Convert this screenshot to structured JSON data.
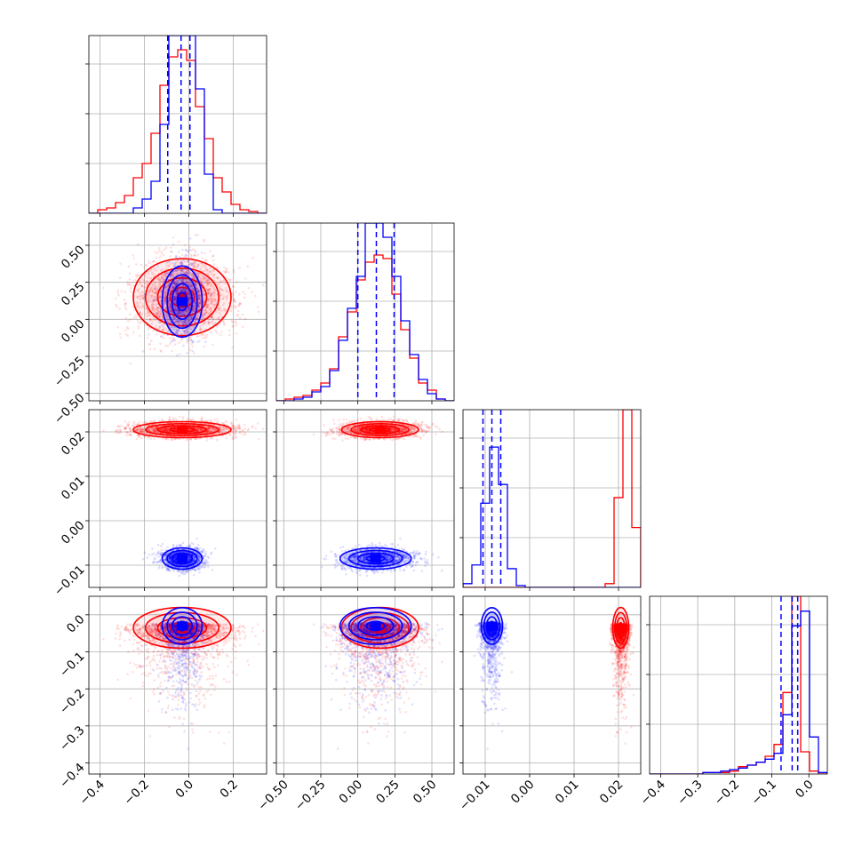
{
  "chart_data": {
    "type": "scatter",
    "grid": true,
    "colors": {
      "series_a": "#0000ff",
      "series_b": "#ff0000"
    },
    "parameters": [
      {
        "range": [
          -0.45,
          0.35
        ],
        "ticks": [
          -0.4,
          -0.2,
          0.0,
          0.2
        ],
        "tick_labels": [
          "−0.4",
          "−0.2",
          "0.0",
          "0.2"
        ]
      },
      {
        "range": [
          -0.55,
          0.65
        ],
        "ticks": [
          -0.5,
          -0.25,
          0.0,
          0.25,
          0.5
        ],
        "tick_labels": [
          "−0.50",
          "−0.25",
          "0.00",
          "0.25",
          "0.50"
        ]
      },
      {
        "range": [
          -0.015,
          0.025
        ],
        "ticks": [
          -0.01,
          0.0,
          0.01,
          0.02
        ],
        "tick_labels": [
          "−0.01",
          "0.00",
          "0.01",
          "0.02"
        ]
      },
      {
        "range": [
          -0.43,
          0.05
        ],
        "ticks": [
          -0.4,
          -0.3,
          -0.2,
          -0.1,
          0.0
        ],
        "tick_labels": [
          "−0.4",
          "−0.3",
          "−0.2",
          "−0.1",
          "0.0"
        ]
      }
    ],
    "series_a": {
      "mean": [
        -0.03,
        0.12,
        -0.0085,
        -0.035
      ],
      "sd": [
        0.045,
        0.12,
        0.0012,
        0.045
      ],
      "quantiles": [
        [
          -0.095,
          -0.035,
          0.005
        ],
        [
          0.0,
          0.125,
          0.245
        ],
        [
          -0.0105,
          -0.0085,
          -0.0065
        ],
        [
          -0.075,
          -0.045,
          -0.03
        ]
      ]
    },
    "series_b": {
      "mean": [
        -0.03,
        0.15,
        0.0205,
        -0.04
      ],
      "sd": [
        0.11,
        0.13,
        0.0009,
        0.05
      ]
    },
    "histograms": {
      "p0": {
        "bins": [
          -0.45,
          -0.41,
          -0.37,
          -0.33,
          -0.29,
          -0.25,
          -0.21,
          -0.17,
          -0.13,
          -0.09,
          -0.05,
          -0.01,
          0.03,
          0.07,
          0.11,
          0.15,
          0.19,
          0.23,
          0.27,
          0.31,
          0.35
        ],
        "series_a": [
          0,
          0,
          0,
          0,
          0,
          3,
          8,
          18,
          50,
          100,
          100,
          100,
          70,
          22,
          2,
          0,
          0,
          0,
          0,
          0
        ],
        "series_b": [
          0,
          2,
          3,
          6,
          10,
          20,
          28,
          45,
          72,
          88,
          92,
          86,
          60,
          42,
          20,
          12,
          5,
          2,
          1,
          0
        ]
      },
      "p1": {
        "bins": [
          -0.55,
          -0.49,
          -0.43,
          -0.37,
          -0.31,
          -0.25,
          -0.19,
          -0.13,
          -0.07,
          -0.01,
          0.05,
          0.11,
          0.17,
          0.23,
          0.29,
          0.35,
          0.41,
          0.47,
          0.53,
          0.59,
          0.65
        ],
        "series_a": [
          0,
          0,
          1,
          2,
          5,
          8,
          17,
          34,
          52,
          70,
          100,
          100,
          92,
          70,
          45,
          26,
          12,
          4,
          1,
          0
        ],
        "series_b": [
          0,
          1,
          2,
          3,
          6,
          10,
          18,
          36,
          50,
          68,
          78,
          82,
          80,
          60,
          40,
          24,
          10,
          6,
          1,
          0
        ]
      },
      "p2": {
        "bins": [
          -0.015,
          -0.013,
          -0.011,
          -0.009,
          -0.007,
          -0.005,
          -0.003,
          -0.001,
          0.001,
          0.003,
          0.005,
          0.007,
          0.009,
          0.011,
          0.013,
          0.015,
          0.017,
          0.019,
          0.021,
          0.023,
          0.025
        ],
        "series_a": [
          2,
          12,
          45,
          75,
          55,
          10,
          1,
          0,
          0,
          0,
          0,
          0,
          0,
          0,
          0,
          0,
          0,
          0,
          0,
          0
        ],
        "series_b": [
          0,
          0,
          0,
          0,
          0,
          0,
          0,
          0,
          0,
          0,
          0,
          0,
          0,
          0,
          0,
          0,
          2,
          48,
          95,
          32
        ]
      },
      "p3": {
        "bins": [
          -0.43,
          -0.406,
          -0.382,
          -0.358,
          -0.334,
          -0.31,
          -0.286,
          -0.262,
          -0.238,
          -0.214,
          -0.19,
          -0.166,
          -0.142,
          -0.118,
          -0.094,
          -0.07,
          -0.046,
          -0.022,
          0.002,
          0.026,
          0.05
        ],
        "series_a": [
          0,
          0,
          0,
          0,
          0,
          0,
          1,
          1,
          2,
          3,
          4,
          6,
          8,
          10,
          14,
          40,
          100,
          110,
          25,
          1
        ],
        "series_b": [
          0,
          0,
          0,
          0,
          0,
          0,
          1,
          1,
          1,
          2,
          5,
          6,
          8,
          12,
          20,
          55,
          120,
          15,
          2,
          0
        ]
      }
    }
  }
}
